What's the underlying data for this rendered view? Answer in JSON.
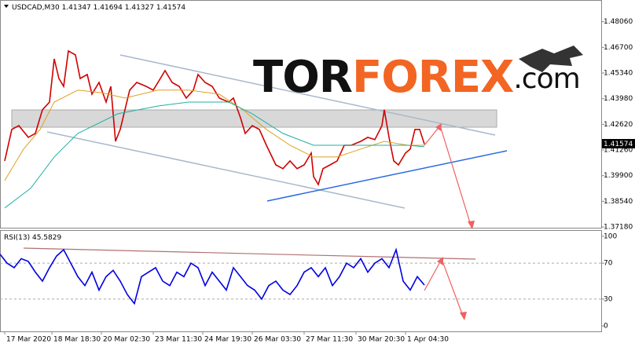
{
  "chart_data": [
    {
      "type": "price",
      "title": "USDCAD,M30",
      "ohlc": [
        1.41347,
        1.41694,
        1.41327,
        1.41574
      ],
      "last": 1.41574,
      "logo": [
        "TOR",
        "FOREX",
        ".com"
      ],
      "xlim": [
        0,
        255
      ],
      "xticks": [
        {
          "value": 2,
          "label": "17 Mar 2020"
        },
        {
          "value": 22,
          "label": "18 Mar 18:30"
        },
        {
          "value": 43,
          "label": "20 Mar 02:30"
        },
        {
          "value": 65,
          "label": "23 Mar 11:30"
        },
        {
          "value": 86,
          "label": "24 Mar 19:30"
        },
        {
          "value": 107,
          "label": "26 Mar 03:30"
        },
        {
          "value": 129,
          "label": "27 Mar 11:30"
        },
        {
          "value": 151,
          "label": "30 Mar 20:30"
        },
        {
          "value": 172,
          "label": "1 Apr 04:30"
        }
      ],
      "ylim": [
        1.3714,
        1.4921
      ],
      "yticks": [
        {
          "value": 1.4806,
          "label": "1.48060"
        },
        {
          "value": 1.467,
          "label": "1.46700"
        },
        {
          "value": 1.4534,
          "label": "1.45340"
        },
        {
          "value": 1.4398,
          "label": "1.43980"
        },
        {
          "value": 1.4262,
          "label": "1.42620"
        },
        {
          "value": 1.4126,
          "label": "1.41260"
        },
        {
          "value": 1.399,
          "label": "1.39900"
        },
        {
          "value": 1.3854,
          "label": "1.38540"
        },
        {
          "value": 1.3718,
          "label": "1.37180"
        }
      ],
      "series": [
        {
          "color": "#d00000",
          "x": [
            2,
            5,
            8,
            12,
            15,
            18,
            21,
            23,
            25,
            27,
            29,
            32,
            34,
            37,
            39,
            42,
            45,
            47,
            49,
            51,
            53,
            55,
            58,
            62,
            65,
            68,
            70,
            73,
            76,
            79,
            82,
            84,
            87,
            90,
            93,
            97,
            99,
            102,
            104,
            107,
            110,
            113,
            117,
            120,
            123,
            126,
            129,
            132,
            133,
            135,
            137,
            140,
            143,
            146,
            149,
            153,
            156,
            159,
            162,
            163,
            165,
            167,
            169,
            172,
            174,
            176,
            178,
            180
          ],
          "values": [
            1.4068,
            1.4235,
            1.4255,
            1.4193,
            1.4214,
            1.4339,
            1.438,
            1.4609,
            1.4505,
            1.4463,
            1.4651,
            1.463,
            1.4505,
            1.4526,
            1.4422,
            1.4484,
            1.438,
            1.4463,
            1.4172,
            1.4235,
            1.4339,
            1.4443,
            1.4484,
            1.4463,
            1.4443,
            1.4505,
            1.4547,
            1.4484,
            1.4463,
            1.4401,
            1.4443,
            1.4526,
            1.4484,
            1.4463,
            1.4401,
            1.438,
            1.4401,
            1.4297,
            1.4214,
            1.4255,
            1.4235,
            1.4151,
            1.4047,
            1.4027,
            1.4068,
            1.4027,
            1.4047,
            1.411,
            1.3985,
            1.3943,
            1.4027,
            1.4047,
            1.4068,
            1.4151,
            1.4151,
            1.4172,
            1.4193,
            1.4181,
            1.4255,
            1.4339,
            1.4193,
            1.4068,
            1.4047,
            1.411,
            1.4131,
            1.4235,
            1.4235,
            1.41574
          ]
        },
        {
          "color": "#e0a020",
          "x": [
            2,
            10,
            17,
            23,
            33,
            43,
            53,
            67,
            80,
            93,
            103,
            113,
            123,
            133,
            143,
            153,
            163,
            173,
            180
          ],
          "values": [
            1.3964,
            1.4131,
            1.4235,
            1.438,
            1.4443,
            1.443,
            1.4401,
            1.4443,
            1.4443,
            1.4422,
            1.4339,
            1.4235,
            1.4151,
            1.4089,
            1.4089,
            1.4131,
            1.4172,
            1.4151,
            1.4151
          ]
        },
        {
          "color": "#20b0a0",
          "x": [
            2,
            13,
            23,
            33,
            50,
            67,
            80,
            97,
            107,
            120,
            133,
            147,
            160,
            173,
            180
          ],
          "values": [
            1.3819,
            1.3923,
            1.4089,
            1.4214,
            1.4318,
            1.4359,
            1.438,
            1.438,
            1.4318,
            1.4214,
            1.4151,
            1.4151,
            1.4151,
            1.4151,
            1.4143
          ]
        }
      ]
    },
    {
      "type": "rsi",
      "title": "RSI(13)",
      "last": 45.5829,
      "xlim": [
        0,
        255
      ],
      "ylim": [
        -6,
        106
      ],
      "yticks": [
        100,
        70,
        30,
        0
      ],
      "levels": [
        70,
        30
      ],
      "series": [
        {
          "color": "#0000e0",
          "x": [
            0,
            3,
            6,
            9,
            12,
            15,
            18,
            21,
            24,
            27,
            30,
            33,
            36,
            39,
            42,
            45,
            48,
            51,
            54,
            57,
            60,
            63,
            66,
            69,
            72,
            75,
            78,
            81,
            84,
            87,
            90,
            93,
            96,
            99,
            102,
            105,
            108,
            111,
            114,
            117,
            120,
            123,
            126,
            129,
            132,
            135,
            138,
            141,
            144,
            147,
            150,
            153,
            156,
            159,
            162,
            165,
            168,
            171,
            174,
            177,
            180
          ],
          "values": [
            80,
            70,
            65,
            75,
            72,
            60,
            50,
            65,
            78,
            85,
            70,
            55,
            45,
            60,
            40,
            55,
            62,
            50,
            35,
            25,
            55,
            60,
            65,
            50,
            45,
            60,
            55,
            70,
            65,
            45,
            60,
            50,
            40,
            65,
            55,
            45,
            40,
            30,
            45,
            50,
            40,
            35,
            45,
            60,
            65,
            55,
            65,
            45,
            55,
            70,
            65,
            75,
            60,
            70,
            75,
            65,
            85,
            50,
            40,
            55,
            45.5829
          ]
        }
      ]
    }
  ]
}
